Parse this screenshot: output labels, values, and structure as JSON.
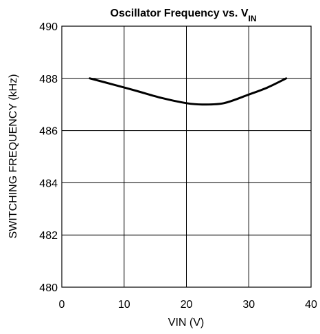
{
  "chart_data": {
    "type": "line",
    "title": "Oscillator Frequency vs. V",
    "title_subscript": "IN",
    "xlabel": "VIN (V)",
    "ylabel": "SWITCHING FREQUENCY (kHz)",
    "xlim": [
      0,
      40
    ],
    "ylim": [
      480,
      490
    ],
    "x_ticks": [
      0,
      10,
      20,
      30,
      40
    ],
    "y_ticks": [
      480,
      482,
      484,
      486,
      488,
      490
    ],
    "grid": true,
    "legend": "none",
    "series": [
      {
        "x": [
          4.5,
          8,
          12,
          16,
          20,
          22.5,
          26,
          30,
          33,
          36
        ],
        "y": [
          488.0,
          487.78,
          487.52,
          487.25,
          487.05,
          487.0,
          487.05,
          487.38,
          487.65,
          488.0
        ]
      }
    ],
    "line_color": "#000000"
  }
}
